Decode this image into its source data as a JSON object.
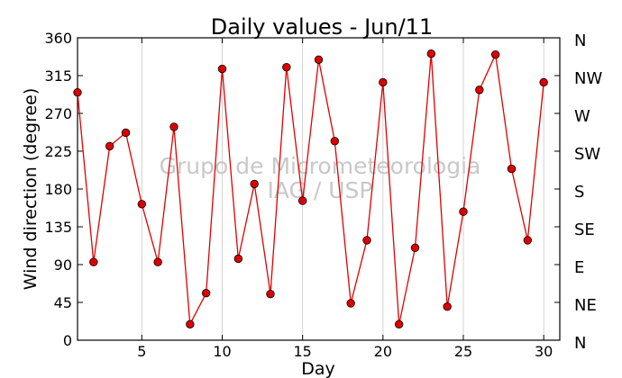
{
  "chart_data": {
    "type": "line",
    "title": "Daily values - Jun/11",
    "xlabel": "Day",
    "ylabel": "Wind direction (degree)",
    "xlim": [
      1,
      31
    ],
    "ylim": [
      0,
      360
    ],
    "x_ticks": [
      5,
      10,
      15,
      20,
      25,
      30
    ],
    "y_ticks": [
      0,
      45,
      90,
      135,
      180,
      225,
      270,
      315,
      360
    ],
    "right_axis_labels": [
      "N",
      "NE",
      "E",
      "SE",
      "S",
      "SW",
      "W",
      "NW",
      "N"
    ],
    "watermark": [
      "Grupo de Micrometeorologia",
      "IAG / USP"
    ],
    "grid": "vertical",
    "line_color": "#e00000",
    "marker_color": "#dd0000",
    "series": [
      {
        "x": [
          1,
          2,
          3,
          4,
          5,
          6,
          7,
          8,
          9,
          10,
          11,
          12,
          13,
          14,
          15,
          16,
          17,
          18,
          19,
          20,
          21,
          22,
          23,
          24,
          25,
          26,
          27,
          28,
          29,
          30
        ],
        "values": [
          295,
          93,
          231,
          247,
          162,
          93,
          254,
          19,
          56,
          323,
          97,
          186,
          55,
          325,
          166,
          334,
          237,
          44,
          119,
          307,
          19,
          110,
          341,
          40,
          153,
          298,
          340,
          204,
          119,
          307
        ]
      }
    ]
  }
}
